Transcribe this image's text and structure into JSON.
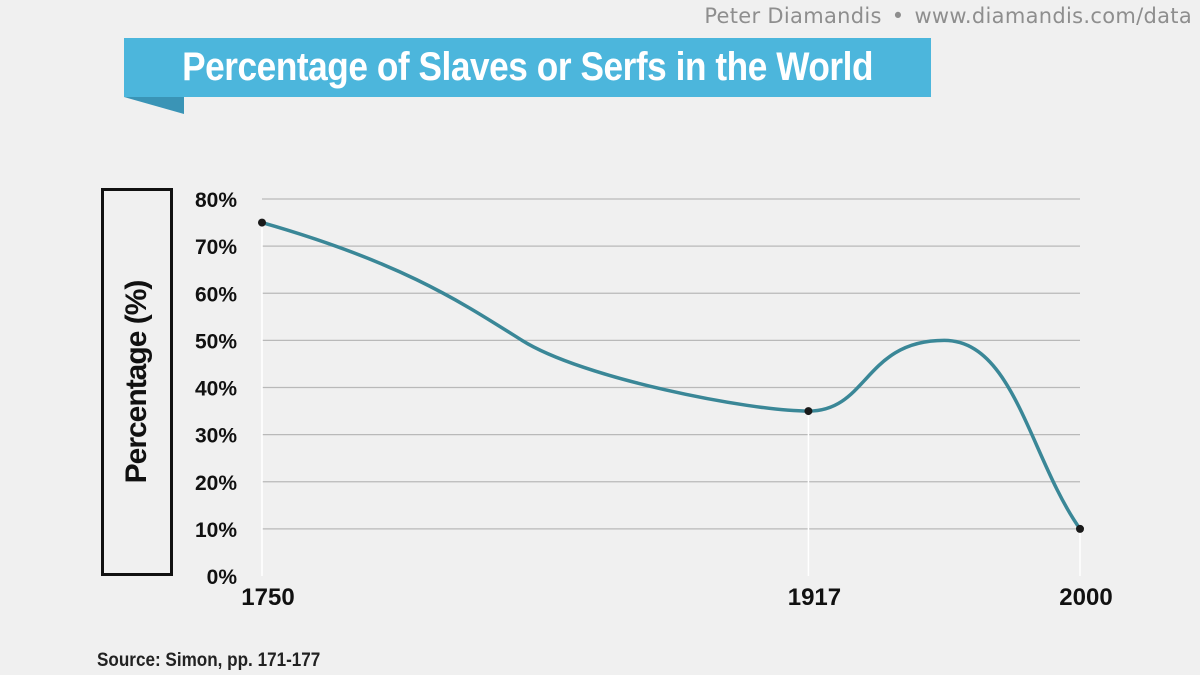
{
  "header": {
    "credit_author": "Peter Diamandis",
    "credit_separator": "•",
    "credit_url": "www.diamandis.com/data"
  },
  "footer": {
    "source": "Source: Simon, pp. 171-177"
  },
  "colors": {
    "banner": "#4cb6dc",
    "banner_fold": "#3a94b6",
    "line": "#3a8797",
    "grid": "#b9b9b9",
    "marker": "#1a1a1a"
  },
  "chart_data": {
    "type": "line",
    "title": "Percentage of Slaves or Serfs in the World",
    "ylabel": "Percentage (%)",
    "xlabel": "",
    "x_ticks": [
      "1750",
      "1917",
      "2000"
    ],
    "y_ticks": [
      "0%",
      "10%",
      "20%",
      "30%",
      "40%",
      "50%",
      "60%",
      "70%",
      "80%"
    ],
    "ylim": [
      0,
      80
    ],
    "grid": true,
    "series": [
      {
        "values": [
          {
            "x": "1750",
            "y": 75
          },
          {
            "x": "1917",
            "y": 35
          },
          {
            "x": "2000",
            "y": 10
          }
        ],
        "curve_peak_between_1917_and_2000": 50
      }
    ]
  }
}
